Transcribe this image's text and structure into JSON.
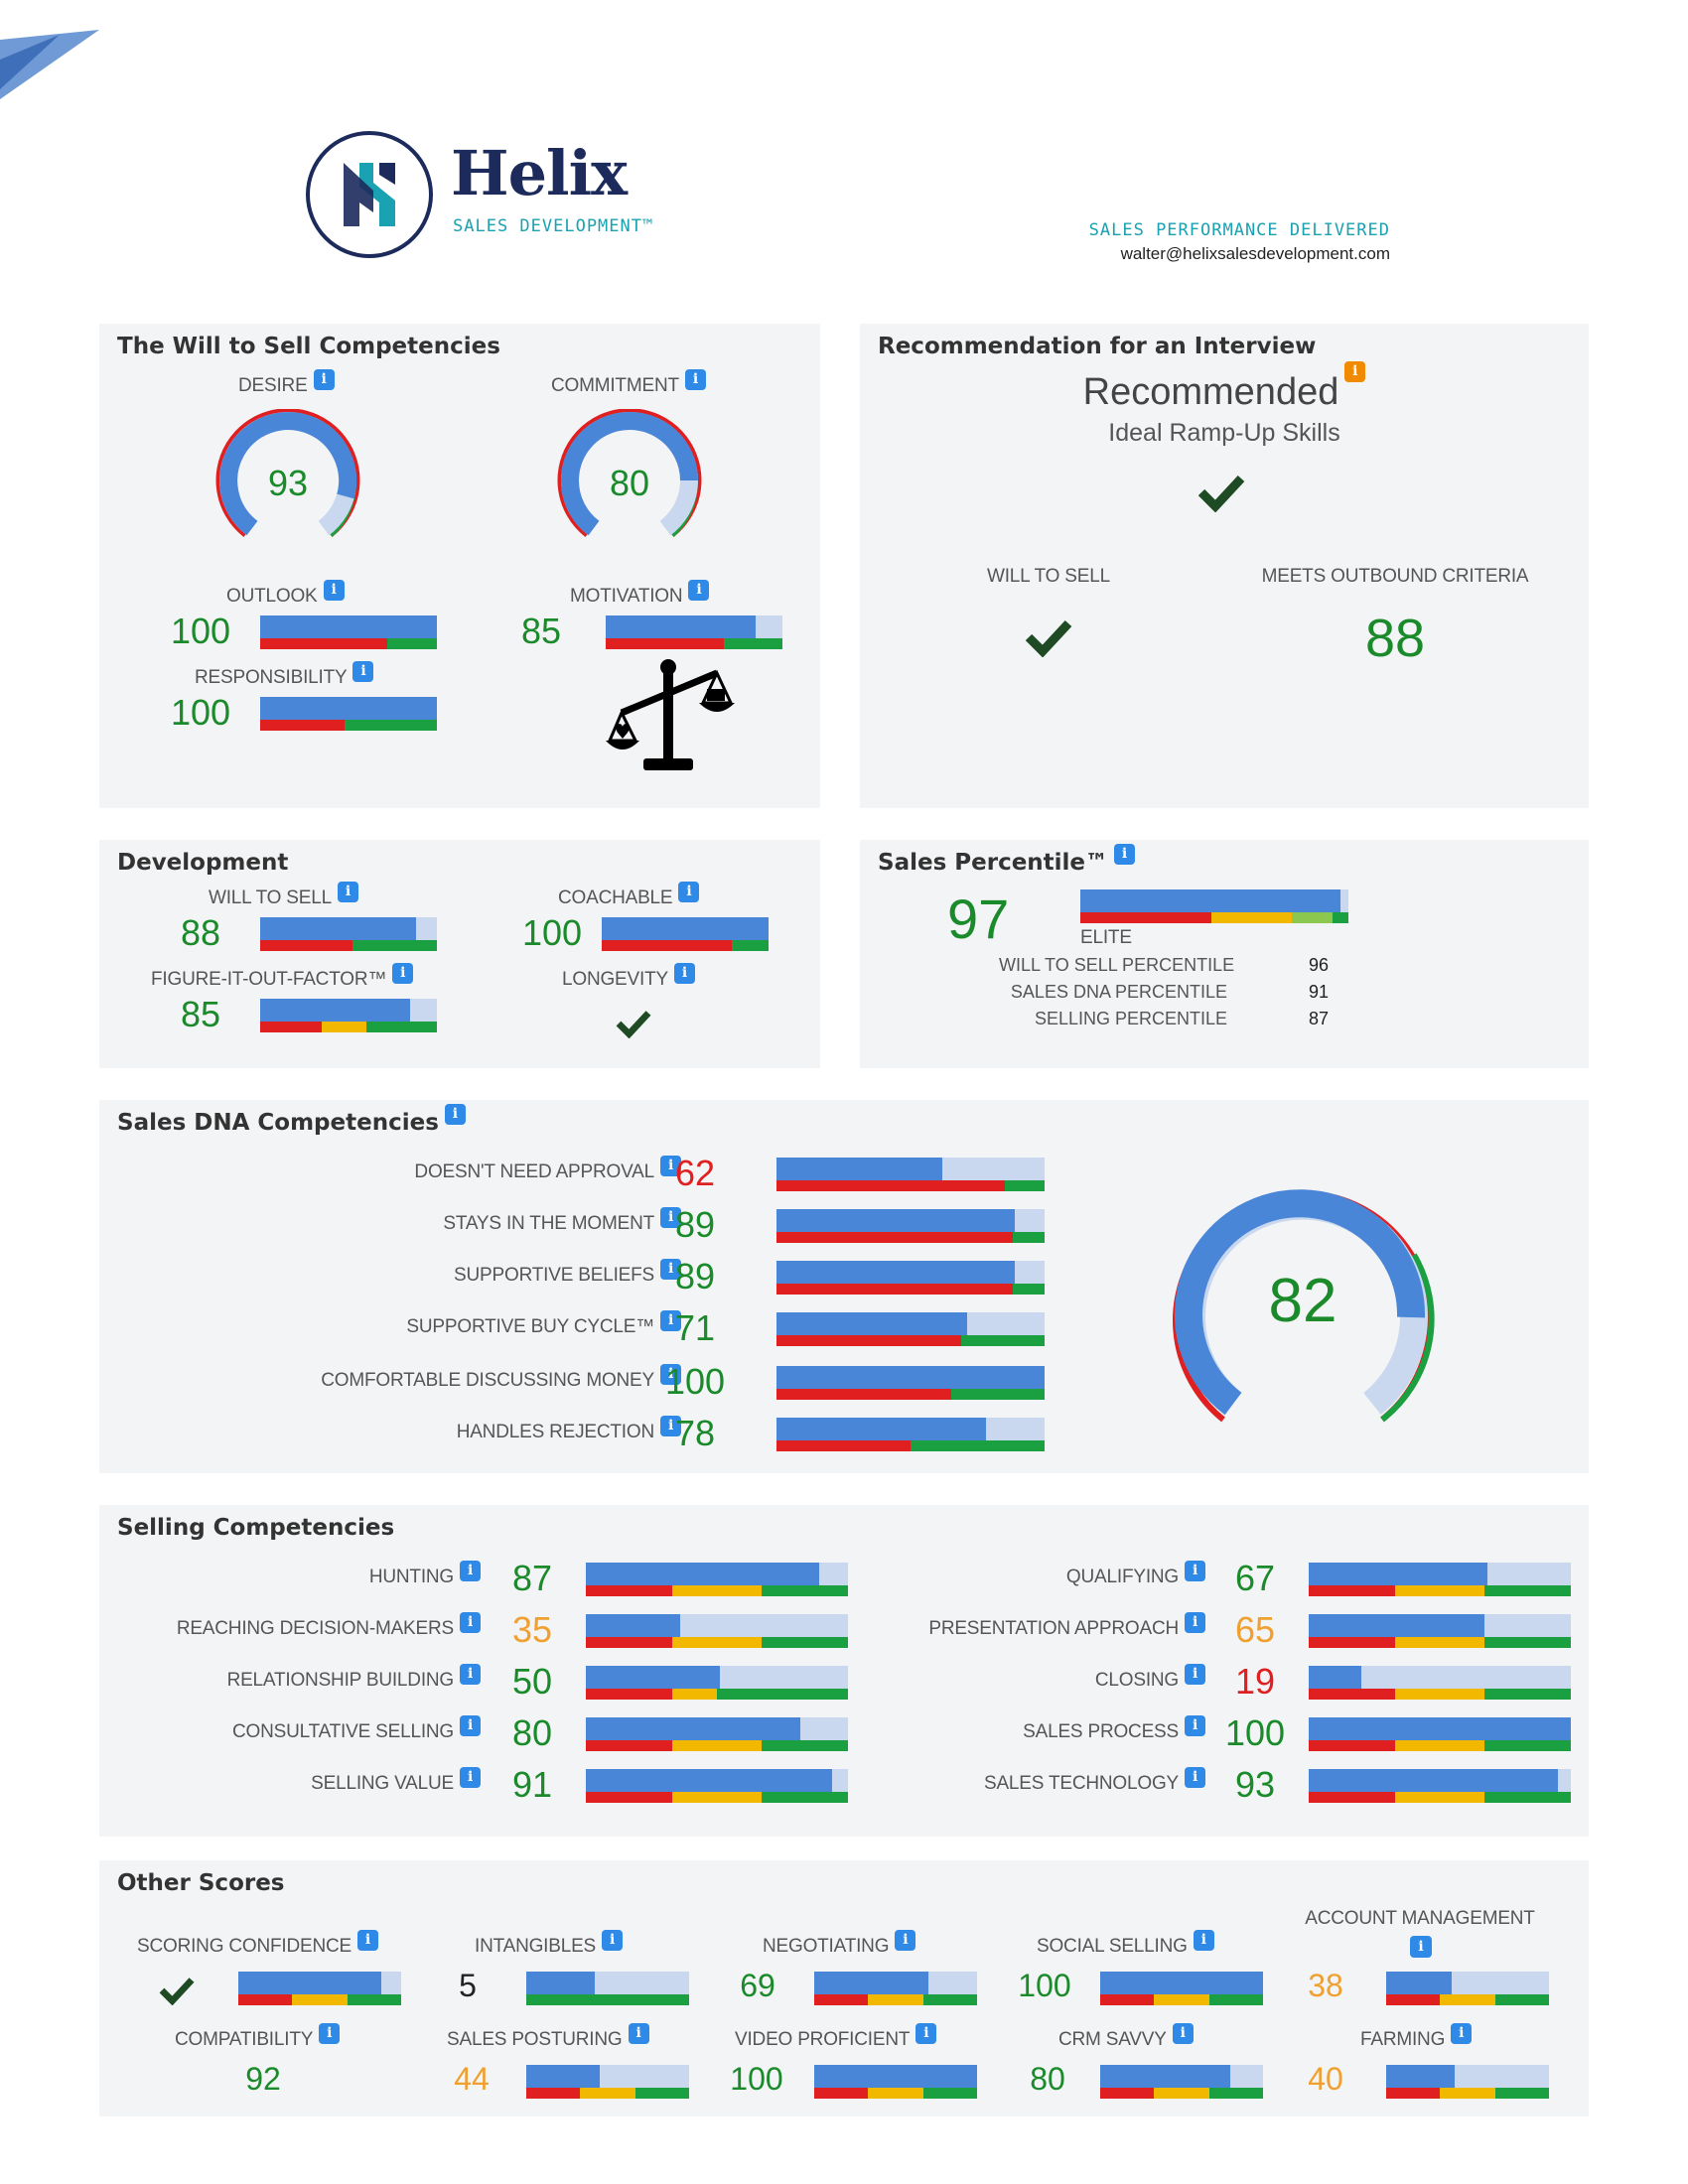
{
  "header": {
    "logo_name": "Helix",
    "logo_sub": "SALES DEVELOPMENT™",
    "tagline": "SALES PERFORMANCE DELIVERED",
    "email": "walter@helixsalesdevelopment.com"
  },
  "icons": {
    "info": "i"
  },
  "colors": {
    "green": "#1a8a2a",
    "orange": "#f0a030",
    "red": "#e02020",
    "bar_fill": "#4a86d8",
    "bar_track": "#c9d8ee",
    "info": "#2e8ae6"
  },
  "will_to_sell": {
    "title": "The Will to Sell Competencies",
    "desire": {
      "label": "DESIRE",
      "value": "93"
    },
    "commitment": {
      "label": "COMMITMENT",
      "value": "80"
    },
    "outlook": {
      "label": "OUTLOOK",
      "value": "100"
    },
    "motivation": {
      "label": "MOTIVATION",
      "value": "85"
    },
    "responsibility": {
      "label": "RESPONSIBILITY",
      "value": "100"
    }
  },
  "recommendation": {
    "title": "Recommendation for an Interview",
    "status": "Recommended",
    "subtitle": "Ideal Ramp-Up Skills",
    "will_to_sell_label": "WILL TO SELL",
    "outbound_label": "MEETS OUTBOUND CRITERIA",
    "outbound_value": "88"
  },
  "development": {
    "title": "Development",
    "will_to_sell": {
      "label": "WILL TO SELL",
      "value": "88"
    },
    "coachable": {
      "label": "COACHABLE",
      "value": "100"
    },
    "figure_it_out": {
      "label": "FIGURE-IT-OUT-FACTOR™",
      "value": "85"
    },
    "longevity": {
      "label": "LONGEVITY"
    }
  },
  "percentile": {
    "title": "Sales Percentile™",
    "value": "97",
    "tier": "ELITE",
    "rows": [
      {
        "label": "WILL TO SELL PERCENTILE",
        "value": "96"
      },
      {
        "label": "SALES DNA PERCENTILE",
        "value": "91"
      },
      {
        "label": "SELLING PERCENTILE",
        "value": "87"
      }
    ]
  },
  "sales_dna": {
    "title": "Sales DNA Competencies",
    "overall": "82",
    "items": [
      {
        "label": "DOESN'T NEED APPROVAL",
        "value": "62"
      },
      {
        "label": "STAYS IN THE MOMENT",
        "value": "89"
      },
      {
        "label": "SUPPORTIVE BELIEFS",
        "value": "89"
      },
      {
        "label": "SUPPORTIVE BUY CYCLE™",
        "value": "71"
      },
      {
        "label": "COMFORTABLE DISCUSSING MONEY",
        "value": "100"
      },
      {
        "label": "HANDLES REJECTION",
        "value": "78"
      }
    ]
  },
  "selling": {
    "title": "Selling Competencies",
    "left": [
      {
        "label": "HUNTING",
        "value": "87"
      },
      {
        "label": "REACHING DECISION-MAKERS",
        "value": "35"
      },
      {
        "label": "RELATIONSHIP BUILDING",
        "value": "50"
      },
      {
        "label": "CONSULTATIVE SELLING",
        "value": "80"
      },
      {
        "label": "SELLING VALUE",
        "value": "91"
      }
    ],
    "right": [
      {
        "label": "QUALIFYING",
        "value": "67"
      },
      {
        "label": "PRESENTATION APPROACH",
        "value": "65"
      },
      {
        "label": "CLOSING",
        "value": "19"
      },
      {
        "label": "SALES PROCESS",
        "value": "100"
      },
      {
        "label": "SALES TECHNOLOGY",
        "value": "93"
      }
    ]
  },
  "other": {
    "title": "Other Scores",
    "row1": [
      {
        "label": "SCORING CONFIDENCE"
      },
      {
        "label": "INTANGIBLES",
        "value": "5"
      },
      {
        "label": "NEGOTIATING",
        "value": "69"
      },
      {
        "label": "SOCIAL SELLING",
        "value": "100"
      },
      {
        "label": "ACCOUNT MANAGEMENT",
        "value": "38"
      }
    ],
    "row2": [
      {
        "label": "COMPATIBILITY",
        "value": "92"
      },
      {
        "label": "SALES POSTURING",
        "value": "44"
      },
      {
        "label": "VIDEO PROFICIENT",
        "value": "100"
      },
      {
        "label": "CRM SAVVY",
        "value": "80"
      },
      {
        "label": "FARMING",
        "value": "40"
      }
    ]
  }
}
